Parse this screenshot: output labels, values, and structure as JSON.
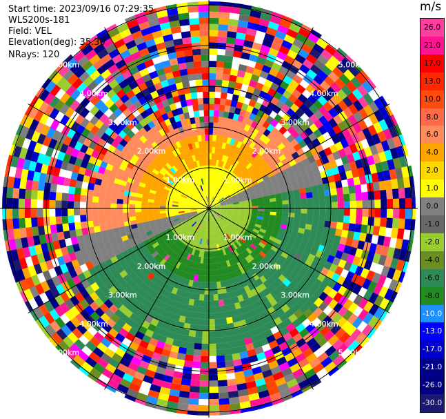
{
  "header": {
    "start_time": "Start time: 2023/09/16 07:29:35",
    "instrument": "WLS200s-181",
    "field": "Field: VEL",
    "elevation": "Elevation(deg): 35.30",
    "nrays": "NRays: 120"
  },
  "colorbar": {
    "unit": "m/s",
    "levels": [
      {
        "label": "26.0",
        "color": "#ff3fa0"
      },
      {
        "label": "21.0",
        "color": "#ff1493"
      },
      {
        "label": "17.0",
        "color": "#ff0000"
      },
      {
        "label": "13.0",
        "color": "#ff2800"
      },
      {
        "label": "10.0",
        "color": "#ff4a10"
      },
      {
        "label": "8.0",
        "color": "#ff6a4a"
      },
      {
        "label": "6.0",
        "color": "#ff8c5a"
      },
      {
        "label": "4.0",
        "color": "#ffa500"
      },
      {
        "label": "2.0",
        "color": "#ffd700"
      },
      {
        "label": "1.0",
        "color": "#ffff00"
      },
      {
        "label": "0.0",
        "color": "#808080"
      },
      {
        "label": "-1.0",
        "color": "#696969"
      },
      {
        "label": "-2.0",
        "color": "#9acd32"
      },
      {
        "label": "-4.0",
        "color": "#6b8e23"
      },
      {
        "label": "-6.0",
        "color": "#2e8b57"
      },
      {
        "label": "-8.0",
        "color": "#228b22"
      },
      {
        "label": "-10.0",
        "color": "#1e90ff"
      },
      {
        "label": "-13.0",
        "color": "#0000ff"
      },
      {
        "label": "-17.0",
        "color": "#0000cd"
      },
      {
        "label": "-21.0",
        "color": "#00008b"
      },
      {
        "label": "-26.0",
        "color": "#000080"
      },
      {
        "label": "-30.0",
        "color": "#191970"
      }
    ]
  },
  "range_rings": [
    {
      "label": "1.00km"
    },
    {
      "label": "2.00km"
    },
    {
      "label": "3.00km"
    },
    {
      "label": "4.00km"
    },
    {
      "label": "5.00km"
    }
  ],
  "ppi_colors": {
    "near_positive": "#ffff00",
    "mid_positive": "#ffa500",
    "far_positive": "#ff8c5a",
    "near_negative": "#9acd32",
    "mid_negative": "#228b22",
    "far_negative": "#2e8b57",
    "zero": "#808080"
  }
}
